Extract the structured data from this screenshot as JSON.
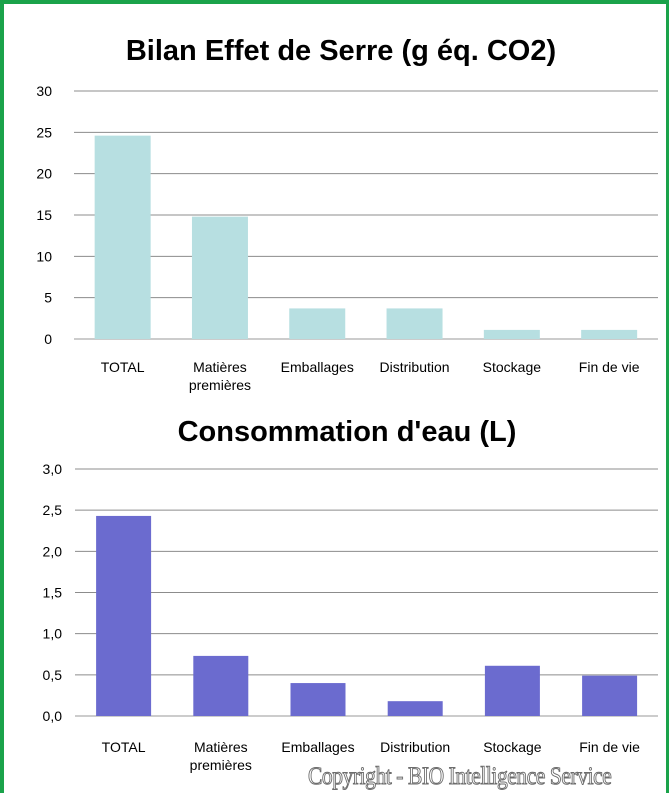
{
  "chart_data": [
    {
      "type": "bar",
      "title": "Bilan Effet de Serre (g éq. CO2)",
      "categories": [
        [
          "TOTAL"
        ],
        [
          "Matières",
          "premières"
        ],
        [
          "Emballages"
        ],
        [
          "Distribution"
        ],
        [
          "Stockage"
        ],
        [
          "Fin de vie"
        ]
      ],
      "values": [
        24.6,
        14.8,
        3.7,
        3.7,
        1.1,
        1.1
      ],
      "ylim": [
        0,
        30
      ],
      "yticks": [
        "0",
        "5",
        "10",
        "15",
        "20",
        "25",
        "30"
      ],
      "grid": true,
      "color": "#b7dfe1"
    },
    {
      "type": "bar",
      "title": "Consommation d'eau  (L)",
      "categories": [
        [
          "TOTAL"
        ],
        [
          "Matières",
          "premières"
        ],
        [
          "Emballages"
        ],
        [
          "Distribution"
        ],
        [
          "Stockage"
        ],
        [
          "Fin de vie"
        ]
      ],
      "values": [
        2.43,
        0.73,
        0.4,
        0.18,
        0.61,
        0.49
      ],
      "ylim": [
        0,
        3
      ],
      "yticks": [
        "0,0",
        "0,5",
        "1,0",
        "1,5",
        "2,0",
        "2,5",
        "3,0"
      ],
      "grid": true,
      "color": "#6b6bcf"
    }
  ],
  "footer": {
    "copyright": "Copyright - BIO Intelligence Service"
  }
}
